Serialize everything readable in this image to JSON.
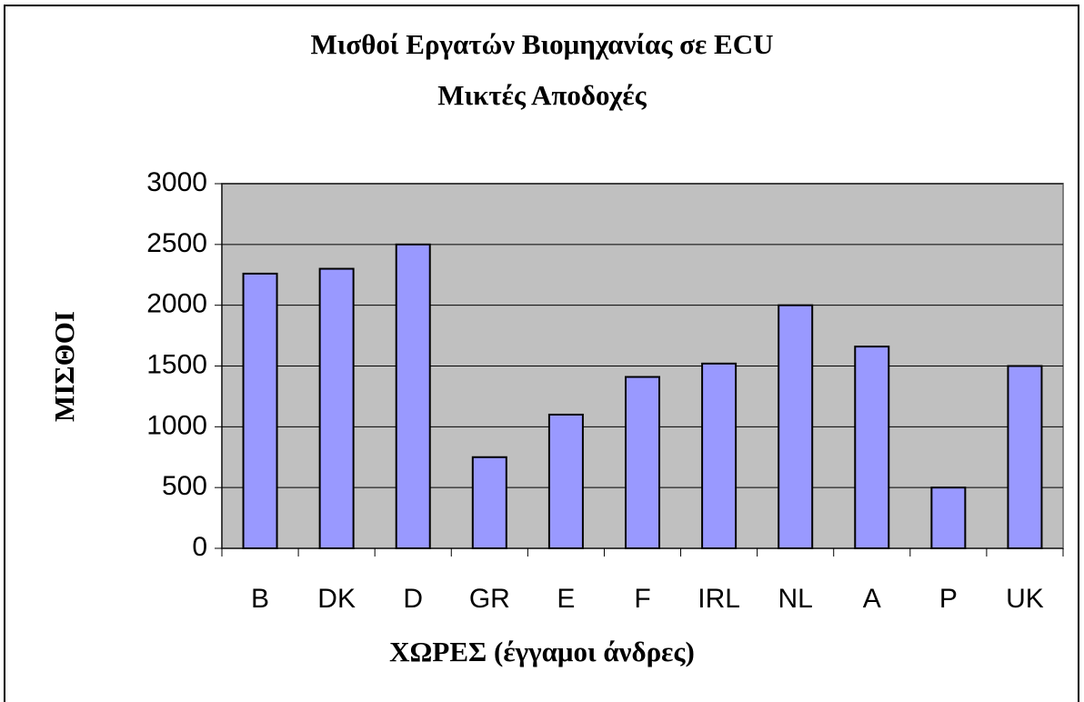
{
  "chart_data": {
    "type": "bar",
    "title": "Μισθοί Εργατών Βιομηχανίας σε ECU",
    "subtitle": "Μικτές Αποδοχές",
    "x_label": "ΧΩΡΕΣ (έγγαμοι άνδρες)",
    "y_label": "ΜΙΣΘΟΙ",
    "categories": [
      "B",
      "DK",
      "D",
      "GR",
      "E",
      "F",
      "IRL",
      "NL",
      "A",
      "P",
      "UK"
    ],
    "values": [
      2260,
      2300,
      2500,
      750,
      1100,
      1410,
      1520,
      2000,
      1660,
      500,
      1500
    ],
    "color": "#9999ff",
    "ylim": [
      0,
      3000
    ],
    "yticks": [
      0,
      500,
      1000,
      1500,
      2000,
      2500,
      3000
    ],
    "grid": true
  }
}
